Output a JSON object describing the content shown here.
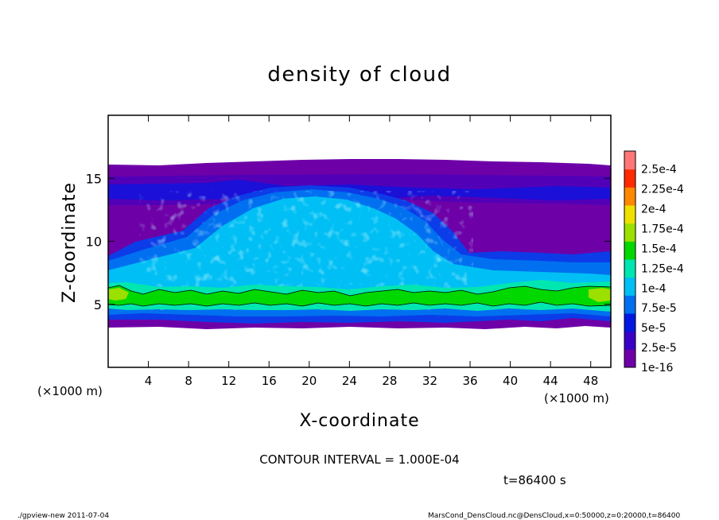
{
  "chart_data": {
    "type": "heatmap",
    "title": "density of cloud",
    "xlabel": "X-coordinate",
    "ylabel": "Z-coordinate",
    "x_unit_left": "(×1000 m)",
    "x_unit_right": "(×1000 m)",
    "xlim": [
      0,
      50
    ],
    "ylim": [
      0,
      20
    ],
    "x_ticks": [
      4,
      8,
      12,
      16,
      20,
      24,
      28,
      32,
      36,
      40,
      44,
      48
    ],
    "y_ticks": [
      5,
      10,
      15
    ],
    "contour_interval_text": "CONTOUR INTERVAL = 1.000E-04",
    "time_text": "t=86400 s",
    "colorbar": {
      "labels": [
        "1e-16",
        "2.5e-5",
        "5e-5",
        "7.5e-5",
        "1e-4",
        "1.25e-4",
        "1.5e-4",
        "1.75e-4",
        "2e-4",
        "2.25e-4",
        "2.5e-4"
      ],
      "colors": [
        "#6e00a8",
        "#3a00c8",
        "#0018e0",
        "#0070f0",
        "#00bff5",
        "#00e6b0",
        "#00d800",
        "#9be000",
        "#f0e000",
        "#ff8800",
        "#ff2a00",
        "#ff7777"
      ]
    },
    "cloud_band_kmZ": [
      3.4,
      16.0
    ],
    "dense_layer_kmZ": [
      5.0,
      6.6
    ],
    "cloud_core_top_kmZ": 14.5
  },
  "footer": {
    "left": "./gpview-new   2011-07-04",
    "right": "MarsCond_DensCloud.nc@DensCloud,x=0:50000,z=0:20000,t=86400"
  }
}
